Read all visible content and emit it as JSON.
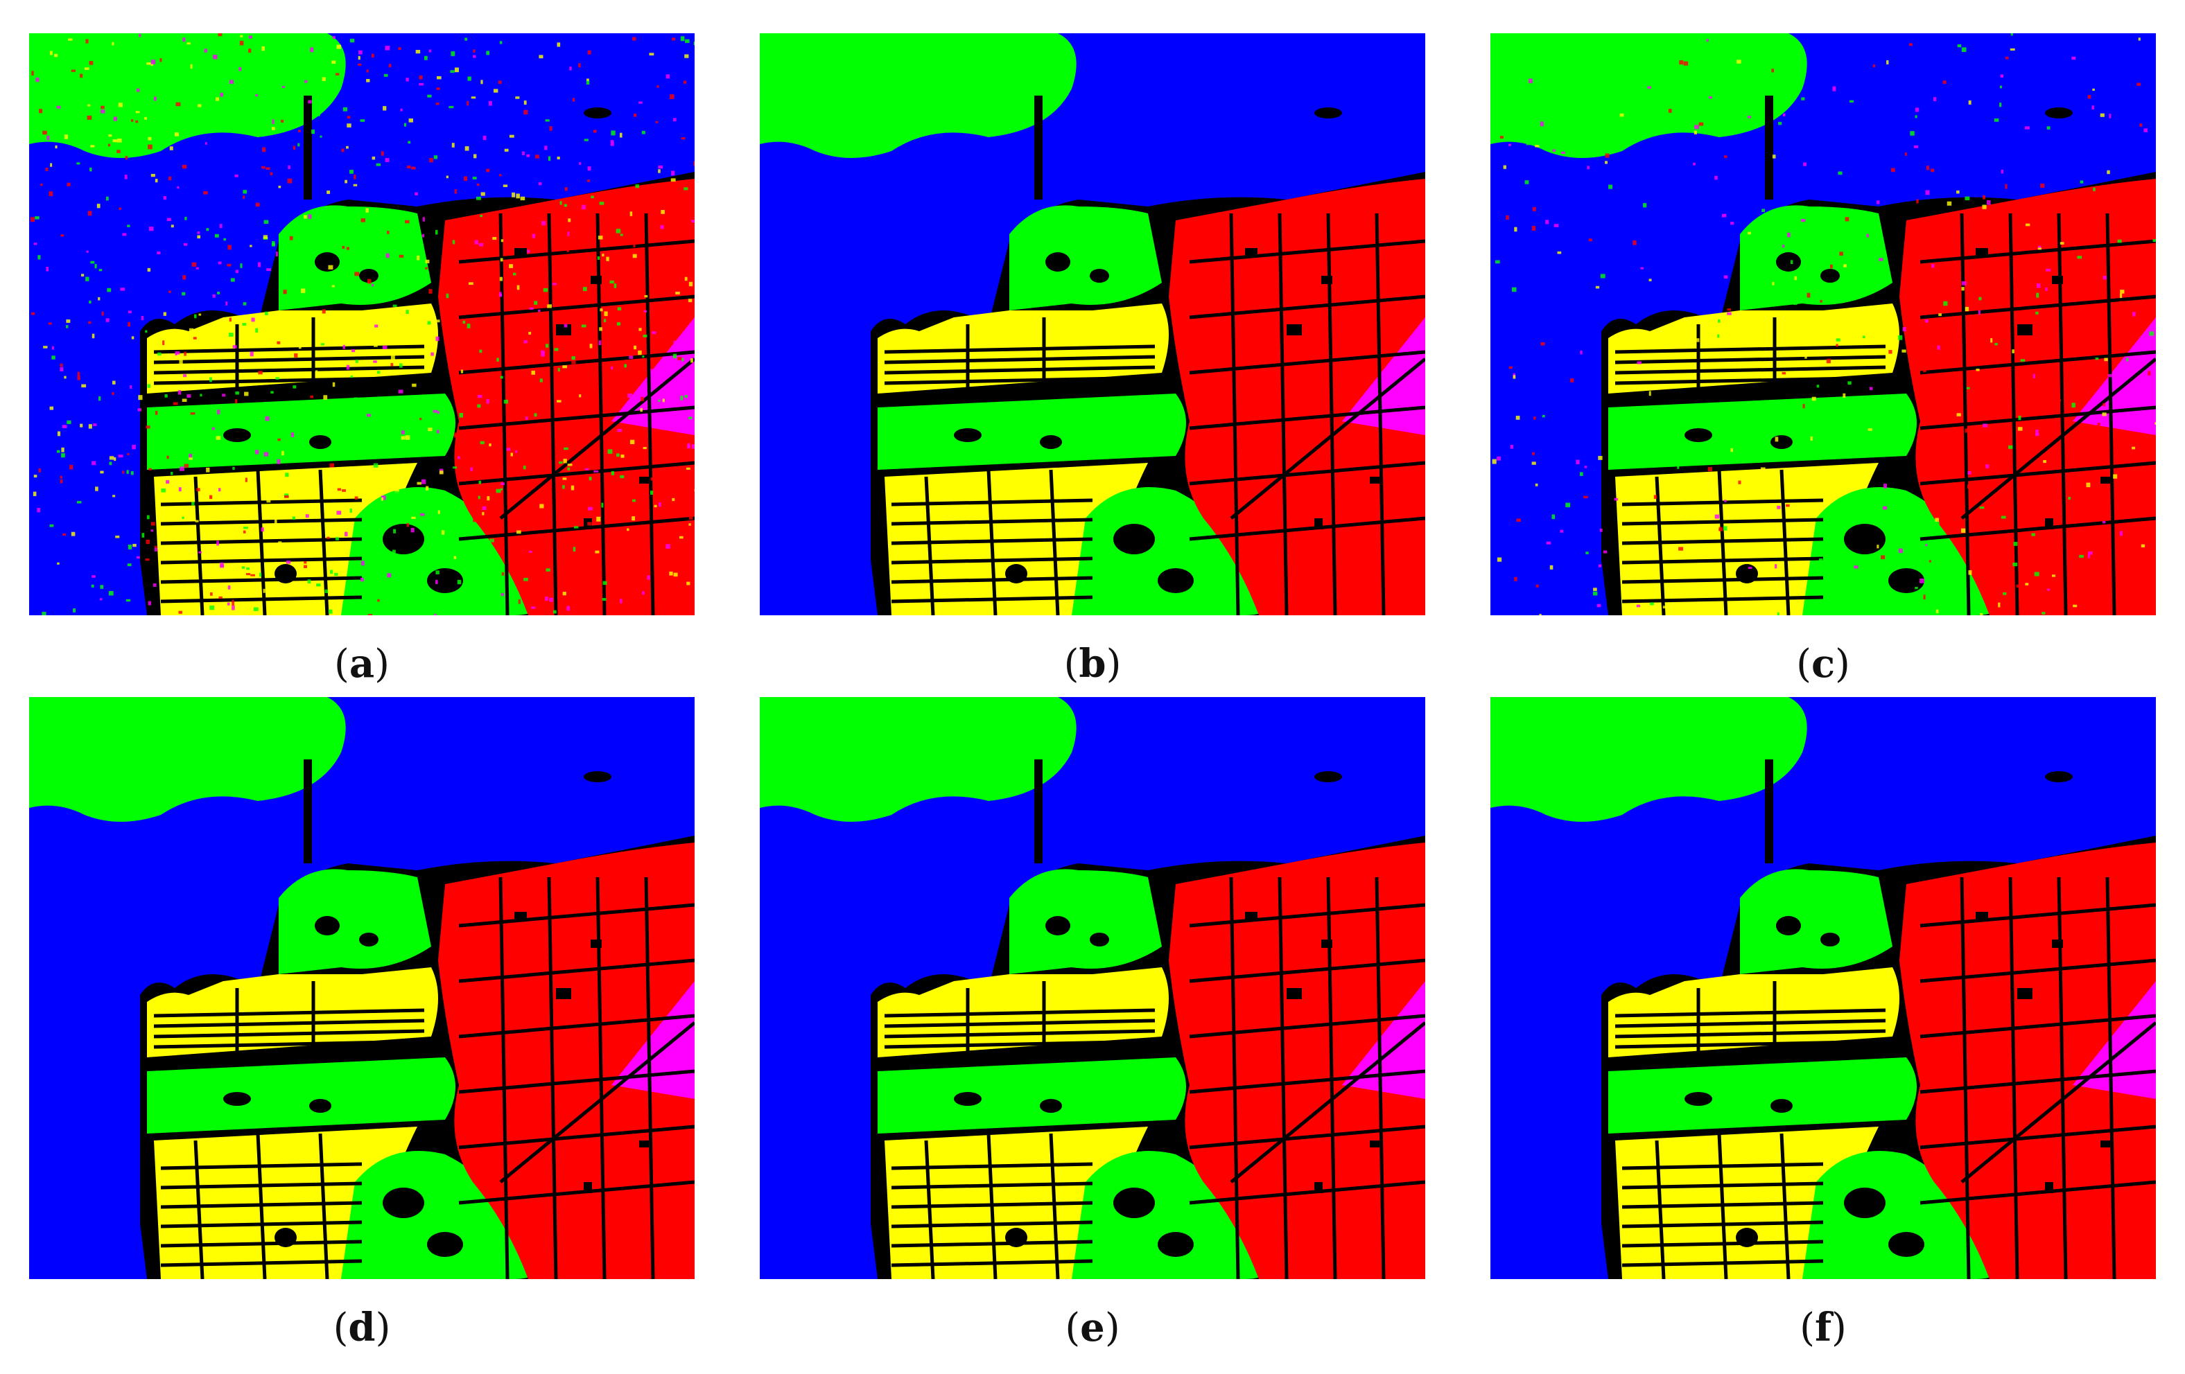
{
  "figure": {
    "panels": [
      {
        "id": "a",
        "letter": "a"
      },
      {
        "id": "b",
        "letter": "b"
      },
      {
        "id": "c",
        "letter": "c"
      },
      {
        "id": "d",
        "letter": "d"
      },
      {
        "id": "e",
        "letter": "e"
      },
      {
        "id": "f",
        "letter": "f"
      }
    ]
  },
  "palette": {
    "water": "#0000ff",
    "vegetation": "#00ff00",
    "low_density_urban": "#ffff00",
    "high_density_urban": "#ff0000",
    "developed": "#ff00ff",
    "unlabeled": "#000000"
  }
}
